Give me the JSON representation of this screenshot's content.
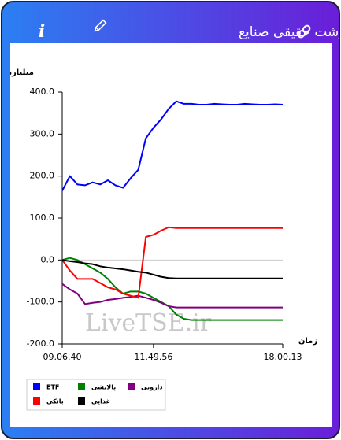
{
  "header": {
    "info_icon": "i"
  },
  "chart_data": {
    "type": "line",
    "title": "پول درشت حقیقی صنایع",
    "y_label": "میلیارد تومان",
    "x_label": "زمان",
    "watermark": "LiveTSE.ir",
    "categories": [
      "09.06.40",
      null,
      null,
      null,
      null,
      null,
      null,
      null,
      null,
      null,
      null,
      null,
      "11.49.56",
      null,
      null,
      null,
      null,
      null,
      null,
      null,
      null,
      null,
      null,
      null,
      null,
      null,
      null,
      null,
      null,
      "18.00.13"
    ],
    "ylim": [
      -200,
      400
    ],
    "yticks": [
      {
        "value": 400,
        "label": "400.0"
      },
      {
        "value": 300,
        "label": "300.0"
      },
      {
        "value": 200,
        "label": "200.0"
      },
      {
        "value": 100,
        "label": "100.0"
      },
      {
        "value": 0,
        "label": "0.0"
      },
      {
        "value": -100,
        "label": "-100.0"
      },
      {
        "value": -200,
        "label": "-200.0"
      }
    ],
    "series": [
      {
        "name": "ETF",
        "color": "#0000ff",
        "values": [
          165,
          200,
          180,
          178,
          185,
          180,
          190,
          178,
          172,
          195,
          215,
          290,
          315,
          335,
          360,
          378,
          372,
          372,
          370,
          370,
          372,
          371,
          370,
          370,
          372,
          371,
          370,
          370,
          371,
          370
        ]
      },
      {
        "name": "پالایشی",
        "color": "#008000",
        "values": [
          0,
          5,
          0,
          -10,
          -20,
          -30,
          -45,
          -65,
          -80,
          -75,
          -75,
          -80,
          -90,
          -100,
          -110,
          -130,
          -140,
          -143,
          -143,
          -143,
          -143,
          -143,
          -143,
          -143,
          -143,
          -143,
          -143,
          -143,
          -143,
          -143
        ]
      },
      {
        "name": "دارویی",
        "color": "#800080",
        "values": [
          -57,
          -70,
          -80,
          -105,
          -102,
          -100,
          -95,
          -93,
          -90,
          -88,
          -85,
          -90,
          -95,
          -102,
          -110,
          -113,
          -113,
          -113,
          -113,
          -113,
          -113,
          -113,
          -113,
          -113,
          -113,
          -113,
          -113,
          -113,
          -113,
          -113
        ]
      },
      {
        "name": "بانکی",
        "color": "#ff0000",
        "values": [
          0,
          -25,
          -45,
          -45,
          -45,
          -55,
          -65,
          -70,
          -80,
          -85,
          -90,
          55,
          60,
          70,
          78,
          76,
          76,
          76,
          76,
          76,
          76,
          76,
          76,
          76,
          76,
          76,
          76,
          76,
          76,
          76
        ]
      },
      {
        "name": "غذایی",
        "color": "#000000",
        "values": [
          0,
          -3,
          -5,
          -8,
          -10,
          -15,
          -18,
          -20,
          -22,
          -25,
          -28,
          -30,
          -35,
          -40,
          -43,
          -44,
          -44,
          -44,
          -44,
          -44,
          -44,
          -44,
          -44,
          -44,
          -44,
          -44,
          -44,
          -44,
          -44,
          -44
        ]
      }
    ]
  }
}
